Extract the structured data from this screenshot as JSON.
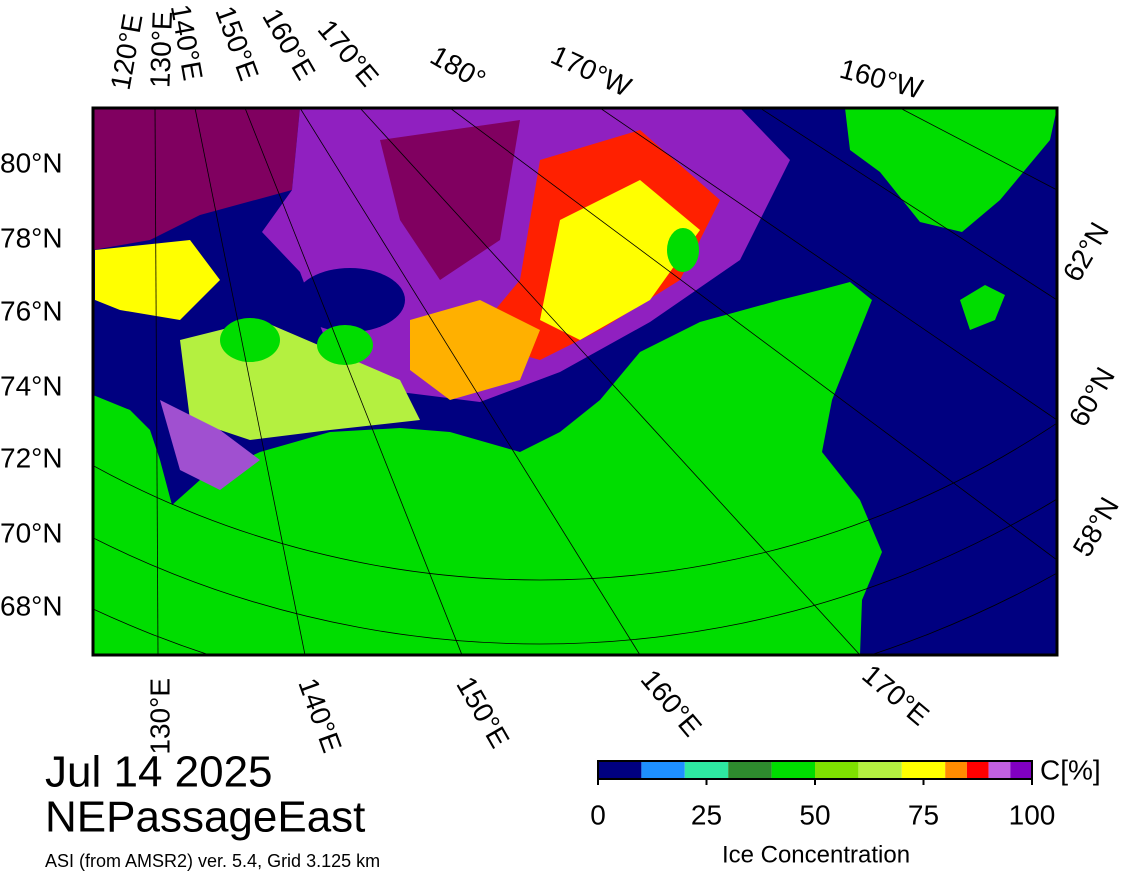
{
  "map": {
    "date": "Jul 14 2025",
    "region": "NEPassageEast",
    "source": "ASI (from AMSR2) ver. 5.4,  Grid 3.125 km",
    "lat_labels_left": [
      "80°N",
      "78°N",
      "76°N",
      "74°N",
      "72°N",
      "70°N",
      "68°N"
    ],
    "lat_labels_right": [
      "62°N",
      "60°N",
      "58°N"
    ],
    "lon_labels_top": [
      "120°E",
      "130°E",
      "140°E",
      "150°E",
      "160°E",
      "170°E",
      "180°",
      "170°W",
      "160°W"
    ],
    "lon_labels_bottom": [
      "130°E",
      "140°E",
      "150°E",
      "160°E",
      "170°E"
    ]
  },
  "colorbar": {
    "colors": [
      "#000080",
      "#1e90ff",
      "#2ee8a0",
      "#2e8b2e",
      "#00dd00",
      "#7fe000",
      "#b4f040",
      "#ffff00",
      "#ff8c00",
      "#ff0000",
      "#c060e0",
      "#8000c0"
    ],
    "bounds": [
      0,
      10,
      20,
      30,
      40,
      50,
      60,
      70,
      80,
      85,
      90,
      95,
      100
    ],
    "range": [
      0,
      100
    ],
    "ticks": [
      0,
      25,
      50,
      75,
      100
    ],
    "unit": "C[%]",
    "title": "Ice Concentration"
  }
}
